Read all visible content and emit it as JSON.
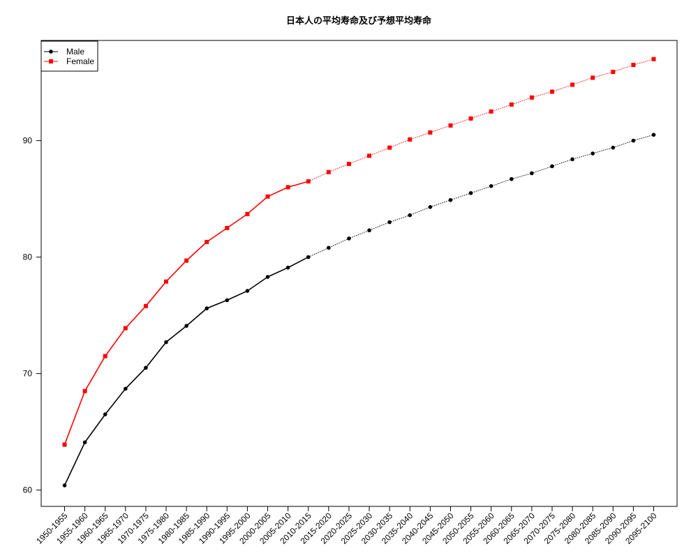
{
  "chart_data": {
    "type": "line",
    "title": "日本人の平均寿命及び予想平均寿命",
    "xlabel": "",
    "ylabel": "",
    "categories": [
      "1950-1955",
      "1955-1960",
      "1960-1965",
      "1965-1970",
      "1970-1975",
      "1975-1980",
      "1980-1985",
      "1985-1990",
      "1990-1995",
      "1995-2000",
      "2000-2005",
      "2005-2010",
      "2010-2015",
      "2015-2020",
      "2020-2025",
      "2025-2030",
      "2030-2035",
      "2035-2040",
      "2040-2045",
      "2045-2050",
      "2050-2055",
      "2055-2060",
      "2060-2065",
      "2065-2070",
      "2070-2075",
      "2075-2080",
      "2080-2085",
      "2085-2090",
      "2090-2095",
      "2095-2100"
    ],
    "ylim": [
      58.6,
      98.6
    ],
    "yticks": [
      60,
      70,
      80,
      90
    ],
    "grid": false,
    "legend_position": "top-left",
    "projection_starts_after_category": "2010-2015",
    "series": [
      {
        "name": "Male",
        "color": "#000000",
        "marker": "circle",
        "values": [
          60.4,
          64.1,
          66.5,
          68.7,
          70.5,
          72.7,
          74.1,
          75.6,
          76.3,
          77.1,
          78.3,
          79.1,
          80.0,
          80.8,
          81.6,
          82.3,
          83.0,
          83.6,
          84.3,
          84.9,
          85.5,
          86.1,
          86.7,
          87.2,
          87.8,
          88.4,
          88.9,
          89.4,
          90.0,
          90.5
        ]
      },
      {
        "name": "Female",
        "color": "#ff0000",
        "marker": "square",
        "values": [
          63.9,
          68.5,
          71.5,
          73.9,
          75.8,
          77.9,
          79.7,
          81.3,
          82.5,
          83.7,
          85.2,
          86.0,
          86.5,
          87.3,
          88.0,
          88.7,
          89.4,
          90.1,
          90.7,
          91.3,
          91.9,
          92.5,
          93.1,
          93.7,
          94.2,
          94.8,
          95.4,
          95.9,
          96.5,
          97.0
        ]
      }
    ]
  }
}
